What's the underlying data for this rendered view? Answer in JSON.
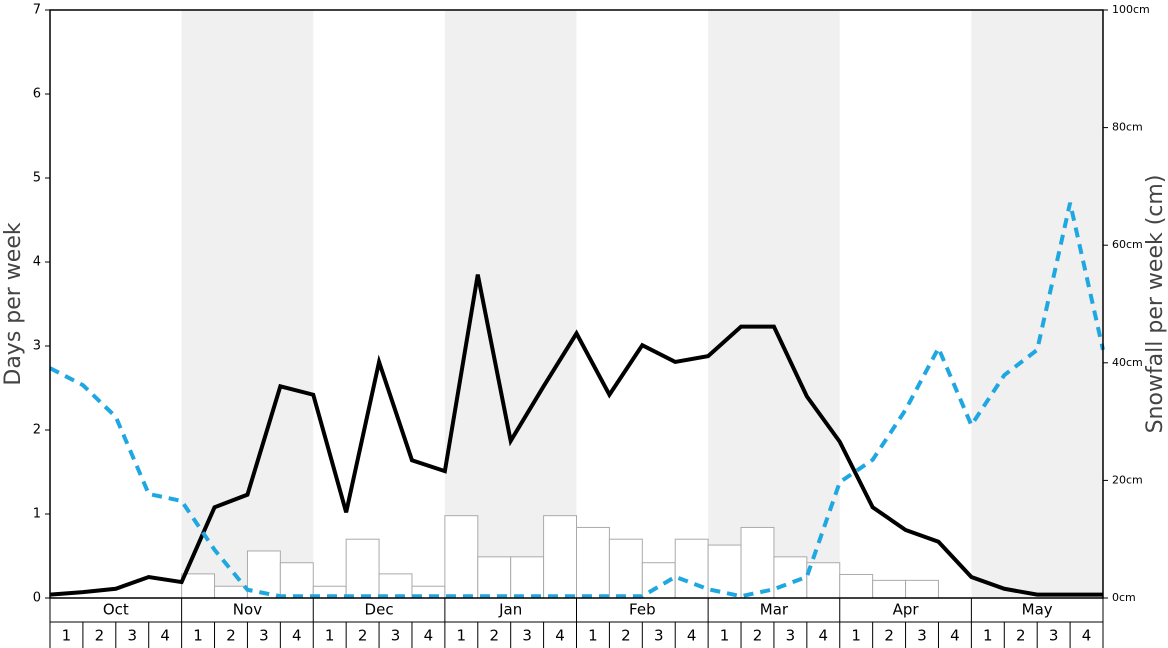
{
  "chart_data": {
    "type": "line",
    "y_label": "Days per week",
    "y2_label": "Snowfall per week (cm)",
    "months": [
      "Oct",
      "Nov",
      "Dec",
      "Jan",
      "Feb",
      "Mar",
      "Apr",
      "May"
    ],
    "categories": [
      "1",
      "2",
      "3",
      "4",
      "1",
      "2",
      "3",
      "4",
      "1",
      "2",
      "3",
      "4",
      "1",
      "2",
      "3",
      "4",
      "1",
      "2",
      "3",
      "4",
      "1",
      "2",
      "3",
      "4",
      "1",
      "2",
      "3",
      "4",
      "1",
      "2",
      "3",
      "4"
    ],
    "bars": {
      "color": "#ffffff",
      "stroke": "#aaaaaa",
      "axis": "y2",
      "values": [
        0,
        0,
        0,
        0,
        4.1,
        2,
        8,
        6,
        2,
        10,
        4.1,
        2,
        14,
        7,
        7,
        14,
        12,
        10,
        6,
        10,
        9,
        12,
        7,
        6,
        4,
        3,
        3,
        0,
        0,
        0,
        0,
        0
      ]
    },
    "x": [
      0,
      1,
      2,
      3,
      4,
      5,
      6,
      7,
      8,
      9,
      10,
      11,
      12,
      13,
      14,
      15,
      16,
      17,
      18,
      19,
      20,
      21,
      22,
      23,
      24,
      25,
      26,
      27,
      28,
      29,
      30,
      31,
      32
    ],
    "xlim": [
      0,
      32
    ],
    "series": [
      {
        "color": "#000000",
        "dashed": false,
        "axis": "y",
        "values": [
          0.04,
          0.07,
          0.11,
          0.25,
          0.19,
          1.08,
          1.23,
          2.52,
          2.42,
          1.02,
          2.81,
          1.64,
          1.51,
          3.85,
          1.87,
          2.52,
          3.15,
          2.42,
          3.01,
          2.81,
          2.88,
          3.23,
          3.23,
          2.4,
          1.86,
          1.08,
          0.81,
          0.67,
          0.25,
          0.11,
          0.04,
          0.04,
          0.04
        ]
      },
      {
        "color": "#1ea7e1",
        "dashed": true,
        "axis": "y2",
        "values": [
          39.1,
          36.2,
          30.8,
          17.7,
          16.5,
          8.2,
          1.4,
          0.3,
          0.3,
          0.3,
          0.3,
          0.3,
          0.3,
          0.3,
          0.3,
          0.3,
          0.3,
          0.3,
          0.3,
          3.6,
          1.5,
          0.3,
          1.5,
          3.6,
          19.7,
          23.5,
          32,
          42.5,
          29.4,
          37.9,
          42.2,
          67.2,
          42.2
        ]
      }
    ],
    "ylim": [
      0,
      7
    ],
    "yticks": [
      0,
      1,
      2,
      3,
      4,
      5,
      6,
      7
    ],
    "y2lim": [
      0,
      100
    ],
    "y2ticks": [
      {
        "value": 0,
        "label": "0cm"
      },
      {
        "value": 20,
        "label": "20cm"
      },
      {
        "value": 40,
        "label": "40cm"
      },
      {
        "value": 60,
        "label": "60cm"
      },
      {
        "value": 80,
        "label": "80cm"
      },
      {
        "value": 100,
        "label": "100cm"
      }
    ],
    "shade_color": "#f0f0f0"
  }
}
